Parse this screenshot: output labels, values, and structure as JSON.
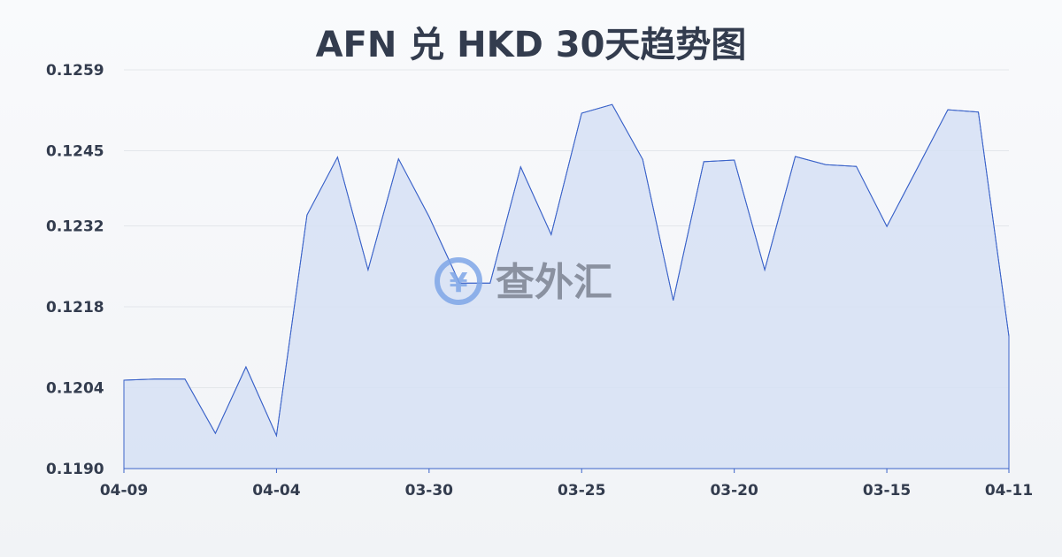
{
  "chart_data": {
    "type": "area",
    "title": "AFN 兑 HKD 30天趋势图",
    "xlabel": "",
    "ylabel": "",
    "ylim": [
      0.119,
      0.1259
    ],
    "y_ticks": [
      "0.1190",
      "0.1204",
      "0.1218",
      "0.1232",
      "0.1245",
      "0.1259"
    ],
    "x_ticks": [
      {
        "index": 0,
        "label": "04-09"
      },
      {
        "index": 5,
        "label": "04-04"
      },
      {
        "index": 10,
        "label": "03-30"
      },
      {
        "index": 15,
        "label": "03-25"
      },
      {
        "index": 20,
        "label": "03-20"
      },
      {
        "index": 25,
        "label": "03-15"
      },
      {
        "index": 29,
        "label": "04-11"
      }
    ],
    "values": [
      0.12053,
      0.12055,
      0.12055,
      0.11961,
      0.12076,
      0.11957,
      0.12339,
      0.12439,
      0.12244,
      0.12436,
      0.12336,
      0.12221,
      0.12221,
      0.12422,
      0.12305,
      0.12515,
      0.1253,
      0.12435,
      0.12191,
      0.12431,
      0.12434,
      0.12244,
      0.1244,
      0.12426,
      0.12423,
      0.12319,
      0.1242,
      0.12521,
      0.12517,
      0.12129
    ],
    "grid": true,
    "colors": {
      "line": "#3b63c9",
      "fill": "#d6e0f5",
      "grid": "#e3e6ea"
    }
  },
  "watermark": "查外汇"
}
